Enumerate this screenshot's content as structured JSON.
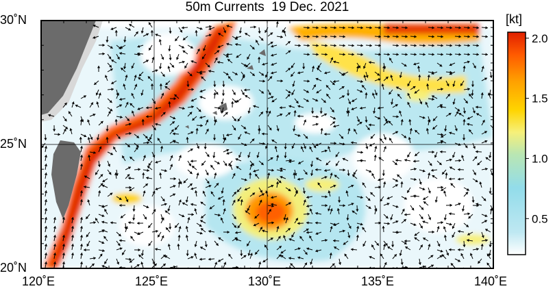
{
  "title": "50m Currents  19 Dec. 2021",
  "colorbar": {
    "unit": "[kt]",
    "tick_labels": [
      "2.0",
      "1.5",
      "1.0",
      "0.5"
    ],
    "tick_values": [
      2.0,
      1.5,
      1.0,
      0.5
    ],
    "range": [
      0.2,
      2.05
    ],
    "colors": [
      "#ffffff",
      "#bfe8f2",
      "#92dcea",
      "#b9e6b3",
      "#f6f07a",
      "#ffd400",
      "#ffa000",
      "#ff5a00",
      "#e02000"
    ]
  },
  "axes": {
    "lon_labels": [
      "120˚E",
      "125˚E",
      "130˚E",
      "135˚E",
      "140˚E"
    ],
    "lon_values": [
      120,
      125,
      130,
      135,
      140
    ],
    "lat_labels": [
      "30˚N",
      "25˚N",
      "20˚N"
    ],
    "lat_values": [
      30,
      25,
      20
    ],
    "lon_range": [
      120,
      140
    ],
    "lat_range": [
      20,
      30
    ]
  },
  "colors": {
    "land": "#6b6b6b",
    "shelf": "#d8d8d8",
    "frame": "#000000",
    "grid": "#000000"
  }
}
